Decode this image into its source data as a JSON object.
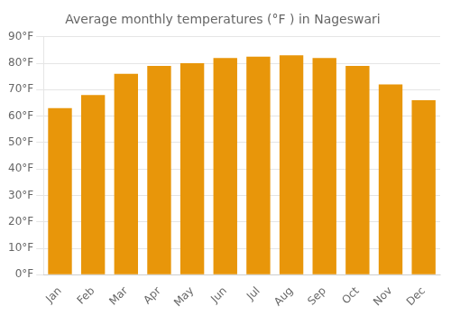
{
  "chart_data": {
    "type": "bar",
    "title": "Average monthly temperatures (°F ) in Nageswari",
    "categories": [
      "Jan",
      "Feb",
      "Mar",
      "Apr",
      "May",
      "Jun",
      "Jul",
      "Aug",
      "Sep",
      "Oct",
      "Nov",
      "Dec"
    ],
    "values": [
      63,
      68,
      76,
      79,
      80,
      82,
      82.5,
      83,
      82,
      79,
      72,
      66
    ],
    "color": "#E8960A",
    "ylim": [
      0,
      90
    ],
    "yticks": [
      {
        "value": 0,
        "label": "0°F"
      },
      {
        "value": 10,
        "label": "10°F"
      },
      {
        "value": 20,
        "label": "20°F"
      },
      {
        "value": 30,
        "label": "30°F"
      },
      {
        "value": 40,
        "label": "40°F"
      },
      {
        "value": 50,
        "label": "50°F"
      },
      {
        "value": 60,
        "label": "60°F"
      },
      {
        "value": 70,
        "label": "70°F"
      },
      {
        "value": 80,
        "label": "80°F"
      },
      {
        "value": 90,
        "label": "90°F"
      }
    ],
    "grid": true
  }
}
